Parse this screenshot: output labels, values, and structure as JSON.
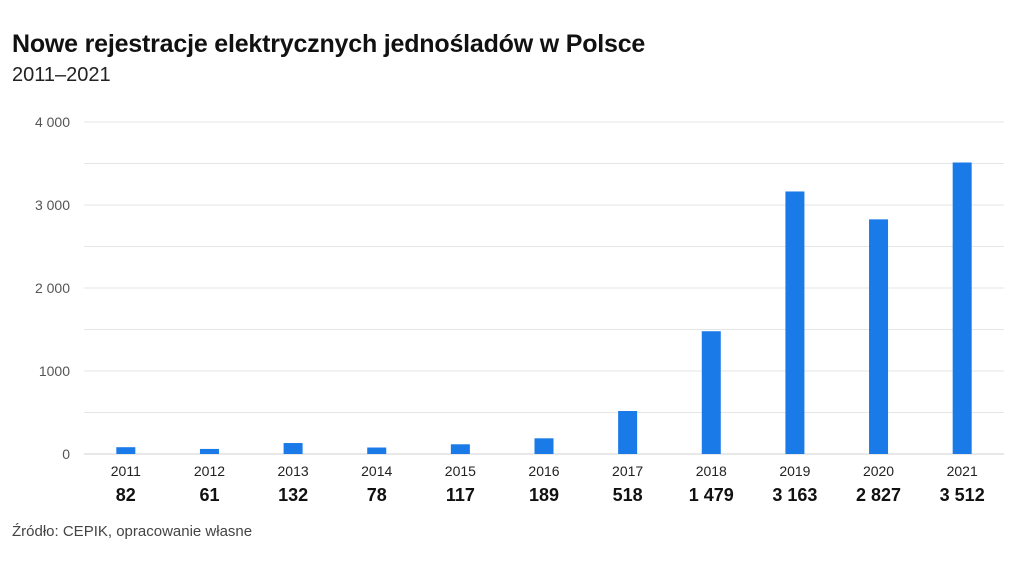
{
  "title": "Nowe rejestracje elektrycznych jednośladów w Polsce",
  "subtitle": "2011–2021",
  "source": "Źródło: CEPIK, opracowanie własne",
  "colors": {
    "bar": "#1a7ae8",
    "grid": "#e6e6e6",
    "axis_text": "#555555",
    "value_text": "#111111"
  },
  "chart_data": {
    "type": "bar",
    "categories": [
      "2011",
      "2012",
      "2013",
      "2014",
      "2015",
      "2016",
      "2017",
      "2018",
      "2019",
      "2020",
      "2021"
    ],
    "values": [
      82,
      61,
      132,
      78,
      117,
      189,
      518,
      1479,
      3163,
      2827,
      3512
    ],
    "value_labels": [
      "82",
      "61",
      "132",
      "78",
      "117",
      "189",
      "518",
      "1 479",
      "3 163",
      "2 827",
      "3 512"
    ],
    "title": "Nowe rejestracje elektrycznych jednośladów w Polsce",
    "subtitle": "2011–2021",
    "xlabel": "",
    "ylabel": "",
    "ylim": [
      0,
      4000
    ],
    "yticks": [
      0,
      1000,
      2000,
      3000,
      4000
    ],
    "ytick_labels": [
      "0",
      "1000",
      "2 000",
      "3 000",
      "4 000"
    ],
    "minor_gridlines": [
      500,
      1500,
      2500,
      3500
    ],
    "grid": true,
    "legend": "none"
  }
}
